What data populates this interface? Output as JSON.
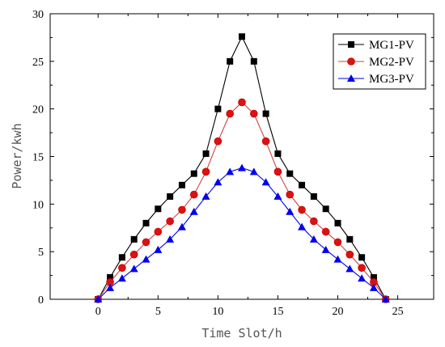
{
  "chart_data": {
    "type": "line",
    "xlabel": "Time Slot/h",
    "ylabel": "Power/kwh",
    "xlim": [
      -4,
      28
    ],
    "ylim": [
      0,
      30
    ],
    "xticks": [
      0,
      5,
      10,
      15,
      20,
      25
    ],
    "yticks": [
      0,
      5,
      10,
      15,
      20,
      25,
      30
    ],
    "grid": false,
    "legend_position": "top-right",
    "x": [
      0,
      1,
      2,
      3,
      4,
      5,
      6,
      7,
      8,
      9,
      10,
      11,
      12,
      13,
      14,
      15,
      16,
      17,
      18,
      19,
      20,
      21,
      22,
      23,
      24
    ],
    "series": [
      {
        "name": "MG1-PV",
        "marker": "square",
        "line_color": "#000000",
        "marker_color": "#000000",
        "values": [
          0,
          2.3,
          4.4,
          6.3,
          8.0,
          9.5,
          10.8,
          12.0,
          13.2,
          15.3,
          20.0,
          25.0,
          27.6,
          25.0,
          19.5,
          15.3,
          13.2,
          12.0,
          10.8,
          9.5,
          8.0,
          6.3,
          4.4,
          2.3,
          0
        ]
      },
      {
        "name": "MG2-PV",
        "marker": "circle",
        "line_color": "#d04040",
        "marker_color": "#dd1111",
        "values": [
          0,
          1.8,
          3.3,
          4.7,
          6.0,
          7.1,
          8.2,
          9.4,
          11.0,
          13.4,
          16.6,
          19.5,
          20.7,
          19.5,
          16.6,
          13.4,
          11.0,
          9.4,
          8.2,
          7.1,
          6.0,
          4.7,
          3.3,
          1.8,
          0
        ]
      },
      {
        "name": "MG3-PV",
        "marker": "triangle",
        "line_color": "#0000ee",
        "marker_color": "#0000ee",
        "values": [
          0,
          1.2,
          2.2,
          3.2,
          4.2,
          5.2,
          6.3,
          7.6,
          9.2,
          10.8,
          12.3,
          13.4,
          13.8,
          13.4,
          12.3,
          10.8,
          9.2,
          7.6,
          6.3,
          5.2,
          4.2,
          3.2,
          2.2,
          1.2,
          0
        ]
      }
    ]
  }
}
